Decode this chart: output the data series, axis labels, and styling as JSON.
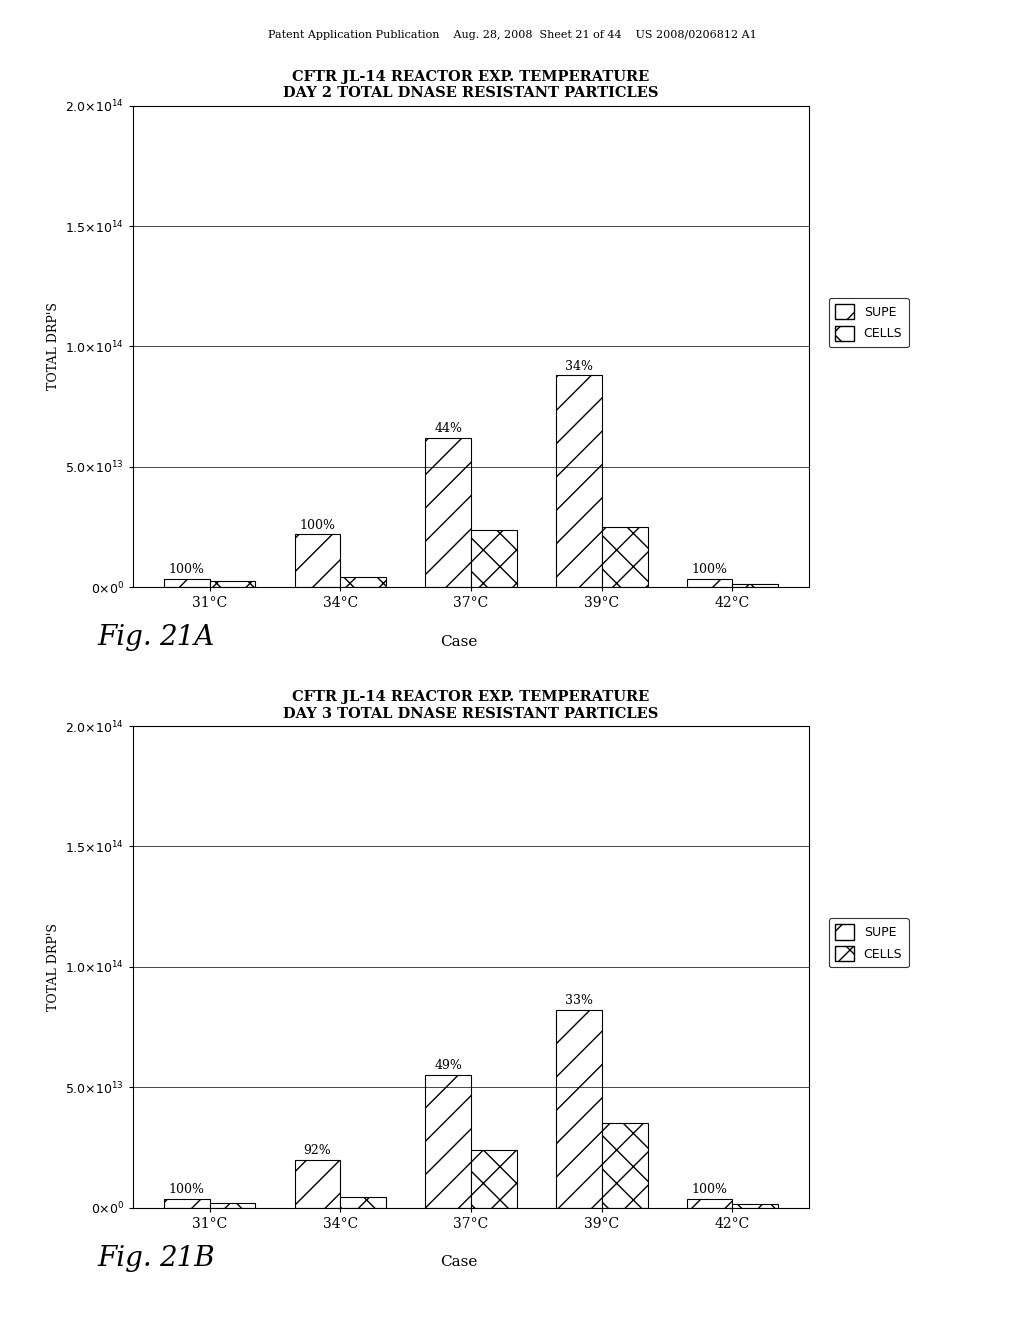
{
  "fig_a": {
    "title": "CFTR JL-14 REACTOR EXP. TEMPERATURE\nDAY 2 TOTAL DNASE RESISTANT PARTICLES",
    "categories": [
      "31°C",
      "34°C",
      "37°C",
      "39°C",
      "42°C"
    ],
    "supe": [
      3500000000000.0,
      22000000000000.0,
      62000000000000.0,
      88000000000000.0,
      3500000000000.0
    ],
    "cells": [
      2500000000000.0,
      4500000000000.0,
      24000000000000.0,
      25000000000000.0,
      1500000000000.0
    ],
    "labels": [
      "100%",
      "100%",
      "44%",
      "34%",
      "100%"
    ],
    "fig_label": "Fig. 21A"
  },
  "fig_b": {
    "title": "CFTR JL-14 REACTOR EXP. TEMPERATURE\nDAY 3 TOTAL DNASE RESISTANT PARTICLES",
    "categories": [
      "31°C",
      "34°C",
      "37°C",
      "39°C",
      "42°C"
    ],
    "supe": [
      3500000000000.0,
      20000000000000.0,
      55000000000000.0,
      82000000000000.0,
      3500000000000.0
    ],
    "cells": [
      2000000000000.0,
      4500000000000.0,
      24000000000000.0,
      35000000000000.0,
      1500000000000.0
    ],
    "labels": [
      "100%",
      "92%",
      "49%",
      "33%",
      "100%"
    ],
    "fig_label": "Fig. 21B"
  },
  "ylim": [
    0,
    200000000000000.0
  ],
  "yticks": [
    0,
    50000000000000.0,
    100000000000000.0,
    150000000000000.0,
    200000000000000.0
  ],
  "ylabel": "TOTAL DRP'S",
  "xlabel": "Case",
  "bar_width": 0.35,
  "background_color": "#ffffff",
  "header_text": "Patent Application Publication    Aug. 28, 2008  Sheet 21 of 44    US 2008/0206812 A1"
}
